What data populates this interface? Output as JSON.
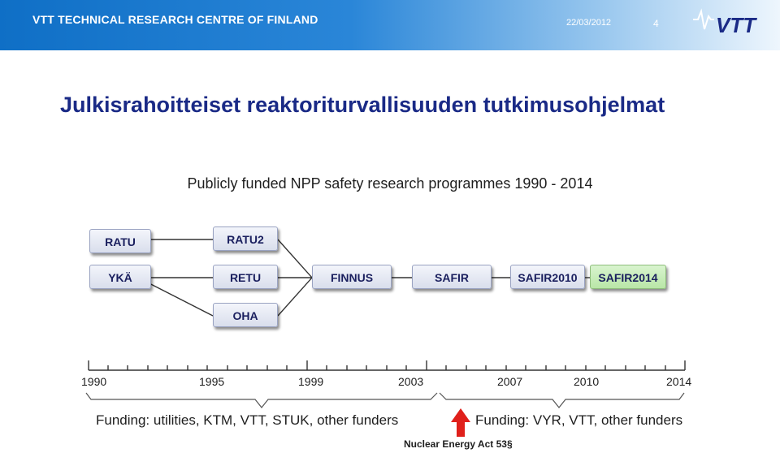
{
  "header": {
    "organization": "VTT TECHNICAL RESEARCH CENTRE OF FINLAND",
    "date": "22/03/2012",
    "page_number": "4",
    "logo_text": "VTT",
    "header_color": "#0f6fc6"
  },
  "title": "Julkisrahoitteiset reaktoriturvallisuuden tutkimusohjelmat",
  "subtitle": "Publicly funded NPP safety research programmes 1990 - 2014",
  "programmes": {
    "ratu": "RATU",
    "ratu2": "RATU2",
    "yka": "YKÄ",
    "retu": "RETU",
    "oha": "OHA",
    "finnus": "FINNUS",
    "safir": "SAFIR",
    "safir2010": "SAFIR2010",
    "safir2014": "SAFIR2014"
  },
  "timeline": {
    "years": [
      "1990",
      "1995",
      "1999",
      "2003",
      "2007",
      "2010",
      "2014"
    ]
  },
  "funding": {
    "before": "Funding: utilities, KTM, VTT, STUK, other funders",
    "after": "Funding: VYR, VTT, other funders",
    "milestone": "Nuclear Energy Act 53§",
    "arrow_color": "#e0201b"
  }
}
